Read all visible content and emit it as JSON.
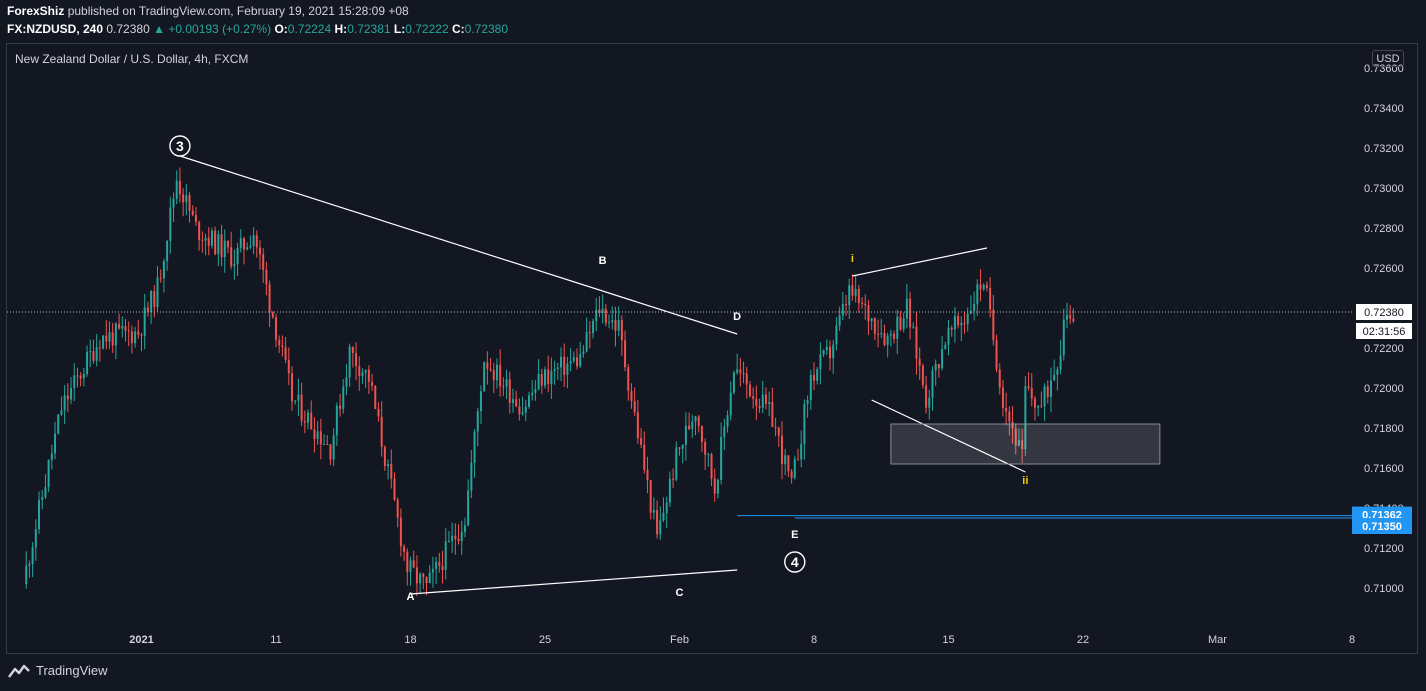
{
  "header": {
    "author": "ForexShiz",
    "published_text": "published on TradingView.com, February 19, 2021 15:28:09 +08",
    "symbol": "FX:NZDUSD, 240",
    "last": "0.72380",
    "change": "+0.00193 (+0.27%)",
    "o_label": "O:",
    "o_value": "0.72224",
    "h_label": "H:",
    "h_value": "0.72381",
    "l_label": "L:",
    "l_value": "0.72222",
    "c_label": "C:",
    "c_value": "0.72380"
  },
  "pane_title": "New Zealand Dollar / U.S. Dollar, 4h, FXCM",
  "currency_button": "USD",
  "footer": {
    "brand": "TradingView"
  },
  "colors": {
    "background": "#131722",
    "up": "#26a69a",
    "down": "#ef5350",
    "wave_label_yellow": "#f5d000",
    "blue_line": "#2196f3"
  },
  "chart_data": {
    "type": "candlestick",
    "symbol": "NZDUSD",
    "timeframe": "4h",
    "ylim": [
      0.7082,
      0.7372
    ],
    "y_ticks": [
      "0.73600",
      "0.73400",
      "0.73200",
      "0.73000",
      "0.72800",
      "0.72600",
      "0.72400",
      "0.72200",
      "0.72000",
      "0.71800",
      "0.71600",
      "0.71400",
      "0.71200",
      "0.71000"
    ],
    "x_ticks": [
      "2021",
      "11",
      "18",
      "25",
      "Feb",
      "8",
      "15",
      "22",
      "Mar",
      "8"
    ],
    "x_tick_dates": [
      "2021-01-04",
      "2021-01-11",
      "2021-01-18",
      "2021-01-25",
      "2021-02-01",
      "2021-02-08",
      "2021-02-15",
      "2021-02-22",
      "2021-03-01",
      "2021-03-08"
    ],
    "x_range_dates": [
      "2020-12-28",
      "2021-03-08"
    ],
    "last_price": {
      "value": 0.7238,
      "label": "0.72380",
      "countdown": "02:31:56"
    },
    "price_levels": [
      {
        "value": 0.71362,
        "label": "0.71362"
      },
      {
        "value": 0.7135,
        "label": "0.71350"
      }
    ],
    "wave_waypoints": [
      [
        "2020-12-29",
        0.7102
      ],
      [
        "2020-12-31",
        0.719
      ],
      [
        "2021-01-02",
        0.7225
      ],
      [
        "2021-01-04",
        0.7228
      ],
      [
        "2021-01-05",
        0.725
      ],
      [
        "2021-01-06",
        0.7305
      ],
      [
        "2021-01-07",
        0.728
      ],
      [
        "2021-01-09",
        0.7265
      ],
      [
        "2021-01-10",
        0.7278
      ],
      [
        "2021-01-12",
        0.7195
      ],
      [
        "2021-01-14",
        0.717
      ],
      [
        "2021-01-15",
        0.7218
      ],
      [
        "2021-01-16",
        0.7205
      ],
      [
        "2021-01-18",
        0.711
      ],
      [
        "2021-01-19",
        0.71
      ],
      [
        "2021-01-21",
        0.7135
      ],
      [
        "2021-01-22",
        0.7215
      ],
      [
        "2021-01-24",
        0.719
      ],
      [
        "2021-01-25",
        0.7205
      ],
      [
        "2021-01-27",
        0.7215
      ],
      [
        "2021-01-28",
        0.724
      ],
      [
        "2021-01-29",
        0.723
      ],
      [
        "2021-01-31",
        0.7125
      ],
      [
        "2021-02-01",
        0.7165
      ],
      [
        "2021-02-02",
        0.719
      ],
      [
        "2021-02-03",
        0.715
      ],
      [
        "2021-02-04",
        0.721
      ],
      [
        "2021-02-06",
        0.7185
      ],
      [
        "2021-02-07",
        0.715
      ],
      [
        "2021-02-08",
        0.7205
      ],
      [
        "2021-02-09",
        0.7218
      ],
      [
        "2021-02-10",
        0.7248
      ],
      [
        "2021-02-12",
        0.7225
      ],
      [
        "2021-02-13",
        0.724
      ],
      [
        "2021-02-14",
        0.7195
      ],
      [
        "2021-02-15",
        0.7225
      ],
      [
        "2021-02-16",
        0.7235
      ],
      [
        "2021-02-17",
        0.7255
      ],
      [
        "2021-02-18",
        0.7195
      ],
      [
        "2021-02-19",
        0.7165
      ],
      [
        "2021-02-19",
        0.72
      ],
      [
        "2021-02-20",
        0.719
      ],
      [
        "2021-02-21",
        0.722
      ],
      [
        "2021-02-21",
        0.7238
      ]
    ],
    "wave_labels": [
      {
        "text": "3",
        "circled": true,
        "date": "2021-01-06",
        "price": 0.7321,
        "color": "#ffffff"
      },
      {
        "text": "A",
        "date": "2021-01-18",
        "price": 0.7096,
        "color": "#ffffff"
      },
      {
        "text": "B",
        "date": "2021-01-28",
        "price": 0.7264,
        "color": "#ffffff"
      },
      {
        "text": "C",
        "date": "2021-02-01",
        "price": 0.7098,
        "color": "#ffffff"
      },
      {
        "text": "D",
        "date": "2021-02-04",
        "price": 0.7236,
        "color": "#ffffff"
      },
      {
        "text": "E",
        "date": "2021-02-07",
        "price": 0.7127,
        "color": "#ffffff"
      },
      {
        "text": "4",
        "circled": true,
        "date": "2021-02-07",
        "price": 0.7113,
        "color": "#ffffff"
      },
      {
        "text": "i",
        "date": "2021-02-10",
        "price": 0.7265,
        "color": "#f5d000"
      },
      {
        "text": "ii",
        "date": "2021-02-19",
        "price": 0.7154,
        "color": "#f5d000"
      }
    ],
    "trendlines": [
      {
        "from": [
          "2021-01-06",
          0.7316
        ],
        "to": [
          "2021-02-04",
          0.7227
        ]
      },
      {
        "from": [
          "2021-01-18",
          0.7097
        ],
        "to": [
          "2021-02-04",
          0.7109
        ]
      },
      {
        "from": [
          "2021-02-10",
          0.7256
        ],
        "to": [
          "2021-02-17",
          0.727
        ]
      },
      {
        "from": [
          "2021-02-11",
          0.7194
        ],
        "to": [
          "2021-02-19",
          0.7158
        ]
      }
    ],
    "zone_box": {
      "from": [
        "2021-02-12",
        0.7182
      ],
      "to": [
        "2021-02-26",
        0.7162
      ]
    },
    "horizontal_segments": [
      {
        "from": [
          "2021-02-04",
          0.71362
        ],
        "to": [
          "2021-03-08",
          0.71362
        ],
        "color": "#2196f3"
      },
      {
        "from": [
          "2021-02-07",
          0.7135
        ],
        "to": [
          "2021-03-08",
          0.7135
        ],
        "color": "#2196f3"
      }
    ]
  }
}
